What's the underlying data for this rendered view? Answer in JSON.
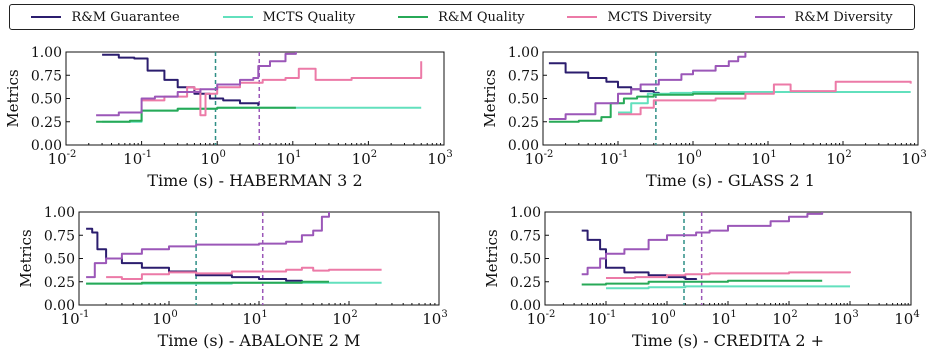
{
  "legend": {
    "items": [
      {
        "label": "R&M Guarantee",
        "color": "#2b1d6e"
      },
      {
        "label": "MCTS Quality",
        "color": "#62e0bd"
      },
      {
        "label": "R&M Quality",
        "color": "#27a957"
      },
      {
        "label": "MCTS Diversity",
        "color": "#ec7aa7"
      },
      {
        "label": "R&M Diversity",
        "color": "#9b57b8"
      }
    ]
  },
  "chart_data": [
    {
      "type": "line",
      "xlabel": "Time (s) - HABERMAN 3 2",
      "ylabel": "Metrics",
      "xscale": "log",
      "xlim": [
        0.01,
        1000
      ],
      "ylim": [
        0.0,
        1.0
      ],
      "xticks": [
        0.01,
        0.1,
        1,
        10,
        100,
        1000
      ],
      "xtick_labels": [
        "10^-2",
        "10^-1",
        "10^0",
        "10^1",
        "10^2",
        "10^3"
      ],
      "yticks": [
        0.0,
        0.25,
        0.5,
        0.75,
        1.0
      ],
      "ytick_labels": [
        "0.00",
        "0.25",
        "0.50",
        "0.75",
        "1.00"
      ],
      "vlines": [
        {
          "x": 0.95,
          "color": "#2e8f86"
        },
        {
          "x": 3.6,
          "color": "#9b57b8"
        }
      ],
      "series": [
        {
          "name": "R&M Guarantee",
          "x": [
            0.03,
            0.05,
            0.08,
            0.12,
            0.2,
            0.3,
            0.5,
            0.8,
            1.2,
            2,
            3.5
          ],
          "y": [
            0.97,
            0.94,
            0.93,
            0.8,
            0.7,
            0.62,
            0.55,
            0.5,
            0.48,
            0.45,
            0.42
          ]
        },
        {
          "name": "MCTS Quality",
          "x": [
            0.03,
            0.1,
            0.3,
            1,
            5,
            10,
            100,
            500
          ],
          "y": [
            0.25,
            0.37,
            0.39,
            0.4,
            0.4,
            0.4,
            0.4,
            0.4
          ]
        },
        {
          "name": "R&M Quality",
          "x": [
            0.025,
            0.07,
            0.1,
            0.3,
            1,
            3,
            11
          ],
          "y": [
            0.25,
            0.26,
            0.37,
            0.39,
            0.4,
            0.4,
            0.4
          ]
        },
        {
          "name": "MCTS Diversity",
          "x": [
            0.1,
            0.2,
            0.4,
            0.5,
            0.6,
            0.7,
            1,
            2,
            4,
            8,
            12,
            20,
            60,
            500
          ],
          "y": [
            0.48,
            0.52,
            0.62,
            0.6,
            0.32,
            0.55,
            0.62,
            0.67,
            0.7,
            0.72,
            0.82,
            0.7,
            0.72,
            0.9
          ]
        },
        {
          "name": "R&M Diversity",
          "x": [
            0.025,
            0.05,
            0.1,
            0.15,
            0.3,
            0.6,
            1,
            2,
            3,
            3.5,
            5,
            8,
            11
          ],
          "y": [
            0.32,
            0.35,
            0.5,
            0.52,
            0.57,
            0.6,
            0.65,
            0.7,
            0.72,
            0.85,
            0.9,
            0.98,
            1.0
          ]
        }
      ]
    },
    {
      "type": "line",
      "xlabel": "Time (s) - GLASS 2 1",
      "ylabel": "Metrics",
      "xscale": "log",
      "xlim": [
        0.01,
        1000
      ],
      "ylim": [
        0.0,
        1.0
      ],
      "xticks": [
        0.01,
        0.1,
        1,
        10,
        100,
        1000
      ],
      "xtick_labels": [
        "10^-2",
        "10^-1",
        "10^0",
        "10^1",
        "10^2",
        "10^3"
      ],
      "yticks": [
        0.0,
        0.25,
        0.5,
        0.75,
        1.0
      ],
      "ytick_labels": [
        "0.00",
        "0.25",
        "0.50",
        "0.75",
        "1.00"
      ],
      "vlines": [
        {
          "x": 0.32,
          "color": "#2e8f86"
        }
      ],
      "series": [
        {
          "name": "R&M Guarantee",
          "x": [
            0.012,
            0.02,
            0.04,
            0.07,
            0.1,
            0.15,
            0.2,
            0.3,
            0.35
          ],
          "y": [
            0.88,
            0.78,
            0.72,
            0.68,
            0.62,
            0.6,
            0.58,
            0.56,
            0.55
          ]
        },
        {
          "name": "MCTS Quality",
          "x": [
            0.1,
            0.15,
            0.25,
            0.5,
            1,
            10,
            100,
            800
          ],
          "y": [
            0.35,
            0.45,
            0.55,
            0.56,
            0.57,
            0.57,
            0.57,
            0.57
          ]
        },
        {
          "name": "R&M Quality",
          "x": [
            0.012,
            0.03,
            0.06,
            0.08,
            0.12,
            0.18,
            0.3,
            1,
            5
          ],
          "y": [
            0.25,
            0.26,
            0.3,
            0.45,
            0.5,
            0.52,
            0.54,
            0.55,
            0.55
          ]
        },
        {
          "name": "MCTS Diversity",
          "x": [
            0.1,
            0.2,
            0.3,
            1,
            2,
            5,
            12,
            20,
            80,
            800
          ],
          "y": [
            0.33,
            0.4,
            0.48,
            0.48,
            0.5,
            0.55,
            0.65,
            0.58,
            0.68,
            0.66
          ]
        },
        {
          "name": "R&M Diversity",
          "x": [
            0.012,
            0.02,
            0.05,
            0.1,
            0.15,
            0.2,
            0.35,
            0.7,
            1,
            2,
            3,
            4,
            5
          ],
          "y": [
            0.28,
            0.33,
            0.45,
            0.55,
            0.6,
            0.65,
            0.7,
            0.76,
            0.8,
            0.85,
            0.9,
            0.95,
            1.0
          ]
        }
      ]
    },
    {
      "type": "line",
      "xlabel": "Time (s) - ABALONE 2 M",
      "ylabel": "Metrics",
      "xscale": "log",
      "xlim": [
        0.1,
        1000
      ],
      "ylim": [
        0.0,
        1.0
      ],
      "xticks": [
        0.1,
        1,
        10,
        100,
        1000
      ],
      "xtick_labels": [
        "10^-1",
        "10^0",
        "10^1",
        "10^2",
        "10^3"
      ],
      "yticks": [
        0.0,
        0.25,
        0.5,
        0.75,
        1.0
      ],
      "ytick_labels": [
        "0.00",
        "0.25",
        "0.50",
        "0.75",
        "1.00"
      ],
      "vlines": [
        {
          "x": 2.0,
          "color": "#2e8f86"
        },
        {
          "x": 11,
          "color": "#9b57b8"
        }
      ],
      "series": [
        {
          "name": "R&M Guarantee",
          "x": [
            0.12,
            0.14,
            0.16,
            0.2,
            0.3,
            0.5,
            1,
            2,
            5,
            10,
            20,
            30
          ],
          "y": [
            0.82,
            0.78,
            0.6,
            0.5,
            0.45,
            0.4,
            0.36,
            0.32,
            0.3,
            0.28,
            0.26,
            0.25
          ]
        },
        {
          "name": "MCTS Quality",
          "x": [
            0.12,
            1,
            5,
            20,
            60,
            230
          ],
          "y": [
            0.23,
            0.23,
            0.24,
            0.24,
            0.24,
            0.24
          ]
        },
        {
          "name": "R&M Quality",
          "x": [
            0.12,
            0.5,
            2,
            10,
            30,
            60
          ],
          "y": [
            0.23,
            0.24,
            0.24,
            0.24,
            0.25,
            0.25
          ]
        },
        {
          "name": "MCTS Diversity",
          "x": [
            0.2,
            0.3,
            0.5,
            1,
            2,
            5,
            10,
            20,
            30,
            40,
            60,
            230
          ],
          "y": [
            0.3,
            0.28,
            0.33,
            0.35,
            0.34,
            0.36,
            0.36,
            0.38,
            0.4,
            0.37,
            0.38,
            0.38
          ]
        },
        {
          "name": "R&M Diversity",
          "x": [
            0.12,
            0.15,
            0.2,
            0.3,
            0.5,
            1,
            2,
            5,
            10,
            20,
            30,
            40,
            50,
            60
          ],
          "y": [
            0.3,
            0.45,
            0.5,
            0.55,
            0.6,
            0.63,
            0.65,
            0.65,
            0.66,
            0.68,
            0.75,
            0.8,
            0.95,
            1.0
          ]
        }
      ]
    },
    {
      "type": "line",
      "xlabel": "Time (s) - CREDITA 2 +",
      "ylabel": "Metrics",
      "xscale": "log",
      "xlim": [
        0.01,
        10000
      ],
      "ylim": [
        0.0,
        1.0
      ],
      "xticks": [
        0.01,
        0.1,
        1,
        10,
        100,
        1000,
        10000
      ],
      "xtick_labels": [
        "10^-2",
        "10^-1",
        "10^0",
        "10^1",
        "10^2",
        "10^3",
        "10^4"
      ],
      "yticks": [
        0.0,
        0.25,
        0.5,
        0.75,
        1.0
      ],
      "ytick_labels": [
        "0.00",
        "0.25",
        "0.50",
        "0.75",
        "1.00"
      ],
      "vlines": [
        {
          "x": 1.9,
          "color": "#2e8f86"
        },
        {
          "x": 3.7,
          "color": "#9b57b8"
        }
      ],
      "series": [
        {
          "name": "R&M Guarantee",
          "x": [
            0.04,
            0.05,
            0.08,
            0.1,
            0.2,
            0.5,
            1,
            2,
            3
          ],
          "y": [
            0.8,
            0.7,
            0.6,
            0.4,
            0.35,
            0.32,
            0.3,
            0.28,
            0.27
          ]
        },
        {
          "name": "MCTS Quality",
          "x": [
            0.1,
            0.5,
            2,
            10,
            100,
            1000
          ],
          "y": [
            0.18,
            0.19,
            0.2,
            0.2,
            0.2,
            0.2
          ]
        },
        {
          "name": "R&M Quality",
          "x": [
            0.04,
            0.1,
            0.5,
            2,
            10,
            100,
            350
          ],
          "y": [
            0.22,
            0.23,
            0.25,
            0.25,
            0.26,
            0.26,
            0.26
          ]
        },
        {
          "name": "MCTS Diversity",
          "x": [
            0.1,
            0.3,
            1,
            2,
            5,
            10,
            100,
            1000
          ],
          "y": [
            0.29,
            0.3,
            0.32,
            0.33,
            0.34,
            0.34,
            0.35,
            0.36
          ]
        },
        {
          "name": "R&M Diversity",
          "x": [
            0.04,
            0.05,
            0.08,
            0.1,
            0.2,
            0.5,
            1,
            3,
            5,
            10,
            50,
            100,
            200,
            350
          ],
          "y": [
            0.33,
            0.4,
            0.5,
            0.55,
            0.6,
            0.7,
            0.75,
            0.78,
            0.8,
            0.85,
            0.9,
            0.95,
            0.98,
            1.0
          ]
        }
      ]
    }
  ]
}
